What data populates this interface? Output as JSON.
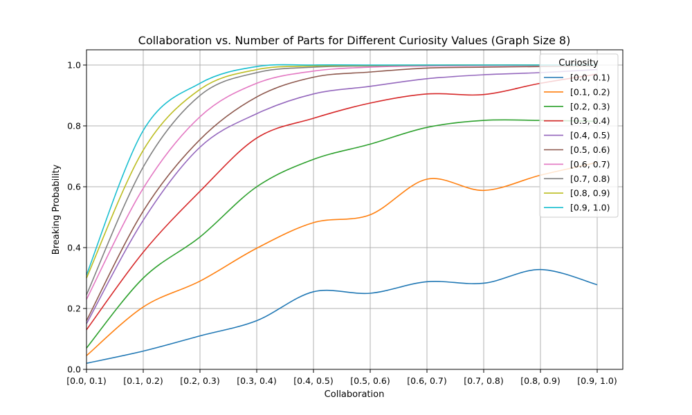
{
  "chart_data": {
    "type": "line",
    "title": "Collaboration vs. Number of Parts for Different Curiosity Values (Graph Size 8)",
    "xlabel": "Collaboration",
    "ylabel": "Breaking Probability",
    "categories": [
      "[0.0, 0.1)",
      "[0.1, 0.2)",
      "[0.2, 0.3)",
      "[0.3, 0.4)",
      "[0.4, 0.5)",
      "[0.5, 0.6)",
      "[0.6, 0.7)",
      "[0.7, 0.8)",
      "[0.8, 0.9)",
      "[0.9, 1.0)"
    ],
    "yticks": [
      "0.0",
      "0.2",
      "0.4",
      "0.6",
      "0.8",
      "1.0"
    ],
    "ylim": [
      0,
      1.05
    ],
    "grid": true,
    "legend_title": "Curiosity",
    "legend_position": "top-right",
    "series": [
      {
        "name": "[0.0, 0.1)",
        "color": "#1f77b4",
        "values": [
          0.02,
          0.06,
          0.11,
          0.16,
          0.255,
          0.25,
          0.288,
          0.283,
          0.328,
          0.278
        ]
      },
      {
        "name": "[0.1, 0.2)",
        "color": "#ff7f0e",
        "values": [
          0.045,
          0.205,
          0.29,
          0.398,
          0.482,
          0.508,
          0.625,
          0.588,
          0.638,
          0.68
        ]
      },
      {
        "name": "[0.2, 0.3)",
        "color": "#2ca02c",
        "values": [
          0.07,
          0.3,
          0.435,
          0.6,
          0.69,
          0.74,
          0.795,
          0.818,
          0.818,
          0.815
        ]
      },
      {
        "name": "[0.3, 0.4)",
        "color": "#d62728",
        "values": [
          0.13,
          0.385,
          0.585,
          0.76,
          0.825,
          0.875,
          0.905,
          0.903,
          0.94,
          0.97
        ]
      },
      {
        "name": "[0.4, 0.5)",
        "color": "#9467bd",
        "values": [
          0.15,
          0.49,
          0.73,
          0.84,
          0.905,
          0.93,
          0.955,
          0.968,
          0.975,
          0.985
        ]
      },
      {
        "name": "[0.5, 0.6)",
        "color": "#8c564b",
        "values": [
          0.16,
          0.52,
          0.755,
          0.895,
          0.96,
          0.977,
          0.99,
          0.993,
          0.995,
          0.997
        ]
      },
      {
        "name": "[0.6, 0.7)",
        "color": "#e377c2",
        "values": [
          0.23,
          0.595,
          0.83,
          0.94,
          0.98,
          0.993,
          0.997,
          0.998,
          0.999,
          1.0
        ]
      },
      {
        "name": "[0.7, 0.8)",
        "color": "#7f7f7f",
        "values": [
          0.245,
          0.665,
          0.9,
          0.975,
          0.993,
          0.997,
          0.999,
          1.0,
          1.0,
          1.0
        ]
      },
      {
        "name": "[0.8, 0.9)",
        "color": "#bcbd22",
        "values": [
          0.3,
          0.72,
          0.92,
          0.985,
          0.997,
          0.999,
          1.0,
          1.0,
          1.0,
          1.0
        ]
      },
      {
        "name": "[0.9, 1.0)",
        "color": "#17becf",
        "values": [
          0.31,
          0.785,
          0.94,
          0.995,
          1.0,
          1.0,
          1.0,
          1.0,
          1.0,
          1.0
        ]
      }
    ]
  }
}
